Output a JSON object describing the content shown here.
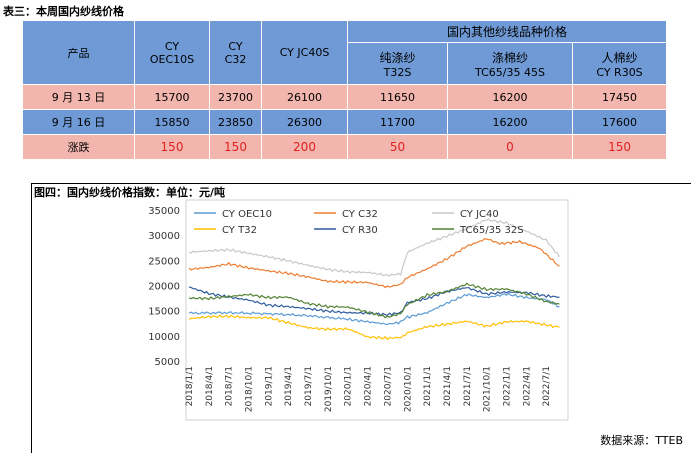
{
  "table": {
    "title": "表三：本周国内纱线价格",
    "header_product": "产品",
    "group_header": "国内其他纱线品种价格",
    "columns": [
      {
        "line1": "CY",
        "line2": "OEC10S"
      },
      {
        "line1": "CY",
        "line2": "C32"
      },
      {
        "line1": "CY JC40S",
        "line2": ""
      },
      {
        "line1": "纯涤纱",
        "line2": "T32S"
      },
      {
        "line1": "涤棉纱",
        "line2": "TC65/35 45S"
      },
      {
        "line1": "人棉纱",
        "line2": "CY R30S"
      }
    ],
    "rows": [
      {
        "label": "9 月 13 日",
        "values": [
          "15700",
          "23700",
          "26100",
          "11650",
          "16200",
          "17450"
        ]
      },
      {
        "label": "9 月 16 日",
        "values": [
          "15850",
          "23850",
          "26300",
          "11700",
          "16200",
          "17600"
        ]
      },
      {
        "label": "涨跌",
        "values": [
          "150",
          "150",
          "200",
          "50",
          "0",
          "150"
        ]
      }
    ]
  },
  "chart_title": "图四：国内纱线价格指数：单位：元/吨",
  "source": "数据来源：TTEB",
  "chart_data": {
    "type": "line",
    "ylim": [
      5000,
      35000
    ],
    "yticks": [
      5000,
      10000,
      15000,
      20000,
      25000,
      30000,
      35000
    ],
    "xticks": [
      "2018/1/1",
      "2018/4/1",
      "2018/7/1",
      "2018/10/1",
      "2019/1/1",
      "2019/4/1",
      "2019/7/1",
      "2019/10/1",
      "2020/1/1",
      "2020/4/1",
      "2020/7/1",
      "2020/10/1",
      "2021/1/1",
      "2021/4/1",
      "2021/7/1",
      "2021/10/1",
      "2022/1/1",
      "2022/4/1",
      "2022/7/1"
    ],
    "x_start_month": "2018/1",
    "series": [
      {
        "name": "CY OEC10",
        "color": "#5b9bd5",
        "points": [
          [
            0,
            14500
          ],
          [
            6,
            14600
          ],
          [
            12,
            14400
          ],
          [
            18,
            14000
          ],
          [
            24,
            13300
          ],
          [
            27,
            12800
          ],
          [
            30,
            12300
          ],
          [
            32,
            12700
          ],
          [
            33,
            13700
          ],
          [
            36,
            14600
          ],
          [
            39,
            16500
          ],
          [
            42,
            18200
          ],
          [
            45,
            17600
          ],
          [
            48,
            18300
          ],
          [
            51,
            17600
          ],
          [
            54,
            17200
          ],
          [
            56,
            15800
          ]
        ]
      },
      {
        "name": "CY C32",
        "color": "#ed7d31",
        "points": [
          [
            0,
            23200
          ],
          [
            3,
            23600
          ],
          [
            6,
            24300
          ],
          [
            9,
            23500
          ],
          [
            12,
            22900
          ],
          [
            15,
            22400
          ],
          [
            18,
            21700
          ],
          [
            21,
            20800
          ],
          [
            24,
            20700
          ],
          [
            27,
            20600
          ],
          [
            30,
            19700
          ],
          [
            32,
            20200
          ],
          [
            33,
            21600
          ],
          [
            36,
            23300
          ],
          [
            39,
            25300
          ],
          [
            42,
            27800
          ],
          [
            45,
            29300
          ],
          [
            47,
            28300
          ],
          [
            50,
            28700
          ],
          [
            53,
            27400
          ],
          [
            56,
            23800
          ]
        ]
      },
      {
        "name": "CY JC40",
        "color": "#c8c8c8",
        "points": [
          [
            0,
            26600
          ],
          [
            3,
            26900
          ],
          [
            6,
            27100
          ],
          [
            9,
            26400
          ],
          [
            12,
            25700
          ],
          [
            15,
            24900
          ],
          [
            18,
            24000
          ],
          [
            21,
            23200
          ],
          [
            24,
            22700
          ],
          [
            27,
            22600
          ],
          [
            30,
            22000
          ],
          [
            32,
            22300
          ],
          [
            33,
            26600
          ],
          [
            36,
            28400
          ],
          [
            39,
            29800
          ],
          [
            42,
            31300
          ],
          [
            45,
            33100
          ],
          [
            48,
            32400
          ],
          [
            51,
            30800
          ],
          [
            54,
            29000
          ],
          [
            56,
            25700
          ]
        ]
      },
      {
        "name": "CY T32",
        "color": "#ffc000",
        "points": [
          [
            0,
            13400
          ],
          [
            3,
            13800
          ],
          [
            6,
            13900
          ],
          [
            9,
            13600
          ],
          [
            12,
            13600
          ],
          [
            15,
            12600
          ],
          [
            18,
            11600
          ],
          [
            21,
            11300
          ],
          [
            24,
            11400
          ],
          [
            27,
            9800
          ],
          [
            30,
            9500
          ],
          [
            32,
            9700
          ],
          [
            33,
            10600
          ],
          [
            36,
            11800
          ],
          [
            39,
            12300
          ],
          [
            42,
            12900
          ],
          [
            45,
            11900
          ],
          [
            48,
            12800
          ],
          [
            51,
            12900
          ],
          [
            53,
            12400
          ],
          [
            56,
            11700
          ]
        ]
      },
      {
        "name": "CY R30",
        "color": "#2e5c9e",
        "points": [
          [
            0,
            19700
          ],
          [
            3,
            18400
          ],
          [
            6,
            17700
          ],
          [
            9,
            17100
          ],
          [
            12,
            16100
          ],
          [
            15,
            15800
          ],
          [
            18,
            15400
          ],
          [
            21,
            14900
          ],
          [
            24,
            14600
          ],
          [
            27,
            14500
          ],
          [
            30,
            14200
          ],
          [
            32,
            14600
          ],
          [
            33,
            16600
          ],
          [
            36,
            17400
          ],
          [
            39,
            18800
          ],
          [
            42,
            19600
          ],
          [
            45,
            18300
          ],
          [
            48,
            18700
          ],
          [
            51,
            18600
          ],
          [
            54,
            17900
          ],
          [
            56,
            17700
          ]
        ]
      },
      {
        "name": "TC65/35 32S",
        "color": "#548235",
        "points": [
          [
            0,
            17500
          ],
          [
            3,
            17400
          ],
          [
            6,
            17800
          ],
          [
            9,
            18200
          ],
          [
            12,
            17600
          ],
          [
            15,
            17700
          ],
          [
            18,
            16400
          ],
          [
            21,
            15800
          ],
          [
            24,
            15700
          ],
          [
            27,
            14700
          ],
          [
            30,
            13700
          ],
          [
            32,
            14400
          ],
          [
            33,
            16200
          ],
          [
            36,
            18100
          ],
          [
            39,
            18800
          ],
          [
            42,
            20300
          ],
          [
            45,
            19200
          ],
          [
            48,
            19300
          ],
          [
            51,
            18300
          ],
          [
            54,
            16800
          ],
          [
            56,
            16300
          ]
        ]
      }
    ]
  }
}
